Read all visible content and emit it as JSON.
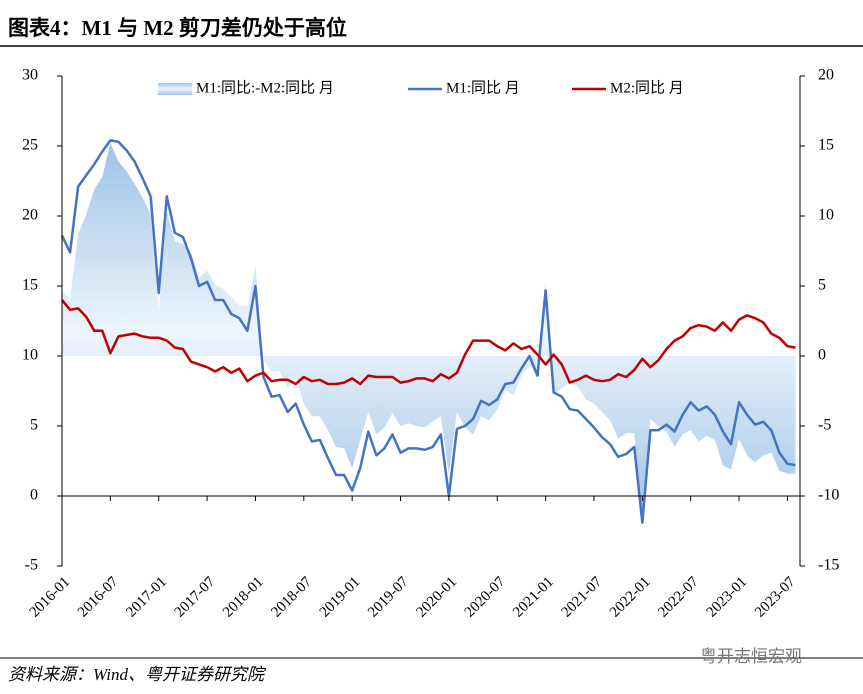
{
  "chart_data": {
    "type": "line",
    "title": "图表4：M1 与 M2 剪刀差仍处于高位",
    "source": "资料来源：Wind、粤开证券研究院",
    "watermark": "粤开志恒宏观",
    "categories": [
      "2016-01",
      "2016-02",
      "2016-03",
      "2016-04",
      "2016-05",
      "2016-06",
      "2016-07",
      "2016-08",
      "2016-09",
      "2016-10",
      "2016-11",
      "2016-12",
      "2017-01",
      "2017-02",
      "2017-03",
      "2017-04",
      "2017-05",
      "2017-06",
      "2017-07",
      "2017-08",
      "2017-09",
      "2017-10",
      "2017-11",
      "2017-12",
      "2018-01",
      "2018-02",
      "2018-03",
      "2018-04",
      "2018-05",
      "2018-06",
      "2018-07",
      "2018-08",
      "2018-09",
      "2018-10",
      "2018-11",
      "2018-12",
      "2019-01",
      "2019-02",
      "2019-03",
      "2019-04",
      "2019-05",
      "2019-06",
      "2019-07",
      "2019-08",
      "2019-09",
      "2019-10",
      "2019-11",
      "2019-12",
      "2020-01",
      "2020-02",
      "2020-03",
      "2020-04",
      "2020-05",
      "2020-06",
      "2020-07",
      "2020-08",
      "2020-09",
      "2020-10",
      "2020-11",
      "2020-12",
      "2021-01",
      "2021-02",
      "2021-03",
      "2021-04",
      "2021-05",
      "2021-06",
      "2021-07",
      "2021-08",
      "2021-09",
      "2021-10",
      "2021-11",
      "2021-12",
      "2022-01",
      "2022-02",
      "2022-03",
      "2022-04",
      "2022-05",
      "2022-06",
      "2022-07",
      "2022-08",
      "2022-09",
      "2022-10",
      "2022-11",
      "2022-12",
      "2023-01",
      "2023-02",
      "2023-03",
      "2023-04",
      "2023-05",
      "2023-06",
      "2023-07",
      "2023-08"
    ],
    "xticks": [
      "2016-01",
      "2016-07",
      "2017-01",
      "2017-07",
      "2018-01",
      "2018-07",
      "2019-01",
      "2019-07",
      "2020-01",
      "2020-07",
      "2021-01",
      "2021-07",
      "2022-01",
      "2022-07",
      "2023-01",
      "2023-07"
    ],
    "series": [
      {
        "name": "M1:同比:-M2:同比 月",
        "kind": "area",
        "axis": "y2",
        "color": "#9dc3e6",
        "values": [
          4.6,
          4.1,
          8.7,
          10.1,
          11.9,
          12.8,
          15.2,
          13.9,
          13.2,
          12.3,
          11.3,
          10.1,
          3.2,
          10.3,
          8.2,
          8.0,
          7.4,
          5.6,
          6.1,
          5.1,
          4.8,
          4.2,
          3.6,
          3.6,
          6.4,
          -0.3,
          -1.1,
          -1.1,
          -2.3,
          -1.4,
          -3.4,
          -4.3,
          -4.3,
          -5.3,
          -6.5,
          -6.6,
          -8.0,
          -6.0,
          -4.0,
          -5.6,
          -5.1,
          -4.1,
          -5.0,
          -4.8,
          -5.0,
          -5.1,
          -4.7,
          -4.3,
          -8.4,
          -4.0,
          -5.1,
          -5.6,
          -4.3,
          -4.6,
          -3.8,
          -2.4,
          -2.8,
          -1.4,
          -0.7,
          -1.5,
          5.3,
          -2.7,
          -2.3,
          -1.9,
          -2.2,
          -3.1,
          -3.4,
          -4.0,
          -4.6,
          -5.9,
          -5.5,
          -5.5,
          -11.7,
          -4.5,
          -5.0,
          -5.4,
          -6.5,
          -5.6,
          -5.3,
          -6.1,
          -5.7,
          -6.0,
          -7.8,
          -8.1,
          -5.9,
          -7.1,
          -7.6,
          -7.1,
          -6.9,
          -8.2,
          -8.4,
          -8.4
        ]
      },
      {
        "name": "M1:同比 月",
        "kind": "line",
        "axis": "y",
        "color": "#4472c4",
        "values": [
          18.6,
          17.4,
          22.1,
          22.9,
          23.7,
          24.6,
          25.4,
          25.3,
          24.7,
          23.9,
          22.7,
          21.4,
          14.5,
          21.4,
          18.8,
          18.5,
          17.0,
          15.0,
          15.3,
          14.0,
          14.0,
          13.0,
          12.7,
          11.8,
          15.0,
          8.5,
          7.1,
          7.2,
          6.0,
          6.6,
          5.1,
          3.9,
          4.0,
          2.7,
          1.5,
          1.5,
          0.4,
          2.0,
          4.6,
          2.9,
          3.4,
          4.4,
          3.1,
          3.4,
          3.4,
          3.3,
          3.5,
          4.4,
          0.0,
          4.8,
          5.0,
          5.5,
          6.8,
          6.5,
          6.9,
          8.0,
          8.1,
          9.1,
          10.0,
          8.6,
          14.7,
          7.4,
          7.1,
          6.2,
          6.1,
          5.5,
          4.9,
          4.2,
          3.7,
          2.8,
          3.0,
          3.5,
          -1.9,
          4.7,
          4.7,
          5.1,
          4.6,
          5.8,
          6.7,
          6.1,
          6.4,
          5.8,
          4.6,
          3.7,
          6.7,
          5.8,
          5.1,
          5.3,
          4.7,
          3.1,
          2.3,
          2.2
        ]
      },
      {
        "name": "M2:同比 月",
        "kind": "line",
        "axis": "y",
        "color": "#c00000",
        "values": [
          14.0,
          13.3,
          13.4,
          12.8,
          11.8,
          11.8,
          10.2,
          11.4,
          11.5,
          11.6,
          11.4,
          11.3,
          11.3,
          11.1,
          10.6,
          10.5,
          9.6,
          9.4,
          9.2,
          8.9,
          9.2,
          8.8,
          9.1,
          8.2,
          8.6,
          8.8,
          8.2,
          8.3,
          8.3,
          8.0,
          8.5,
          8.2,
          8.3,
          8.0,
          8.0,
          8.1,
          8.4,
          8.0,
          8.6,
          8.5,
          8.5,
          8.5,
          8.1,
          8.2,
          8.4,
          8.4,
          8.2,
          8.7,
          8.4,
          8.8,
          10.1,
          11.1,
          11.1,
          11.1,
          10.7,
          10.4,
          10.9,
          10.5,
          10.7,
          10.1,
          9.4,
          10.1,
          9.4,
          8.1,
          8.3,
          8.6,
          8.3,
          8.2,
          8.3,
          8.7,
          8.5,
          9.0,
          9.8,
          9.2,
          9.7,
          10.5,
          11.1,
          11.4,
          12.0,
          12.2,
          12.1,
          11.8,
          12.4,
          11.8,
          12.6,
          12.9,
          12.7,
          12.4,
          11.6,
          11.3,
          10.7,
          10.6
        ]
      }
    ],
    "ylim": [
      -5,
      30
    ],
    "yticks": [
      -5,
      0,
      5,
      10,
      15,
      20,
      25,
      30
    ],
    "y2lim": [
      -15,
      20
    ],
    "y2ticks": [
      -15,
      -10,
      -5,
      0,
      5,
      10,
      15,
      20
    ],
    "grid": false,
    "legend": "top"
  }
}
